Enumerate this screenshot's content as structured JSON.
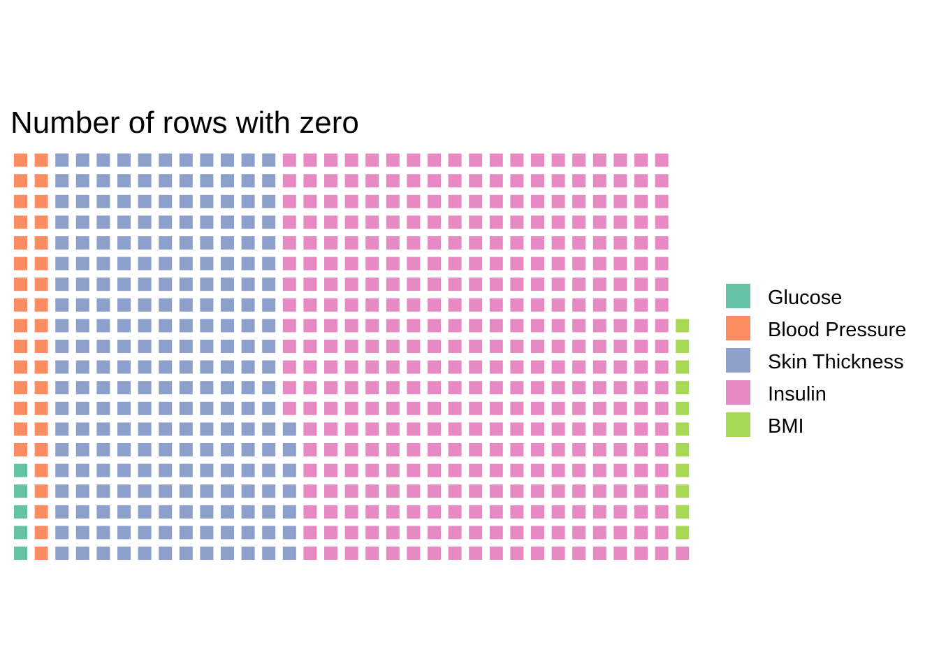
{
  "chart_data": {
    "type": "waffle",
    "title": "Number of rows with zero",
    "xlabel": "",
    "ylabel": "",
    "rows": 20,
    "unit_per_tile": 1,
    "fill_order": "column-wise, bottom to top, left to right",
    "categories": [
      "Glucose",
      "Blood Pressure",
      "Skin Thickness",
      "Insulin",
      "BMI"
    ],
    "values": [
      5,
      35,
      227,
      374,
      11
    ],
    "colors": [
      "#66c2a5",
      "#fc8d62",
      "#8da0cb",
      "#e78ac3",
      "#a6d854"
    ],
    "legend": {
      "position": "right",
      "entries": [
        {
          "label": "Glucose",
          "color": "#66c2a5"
        },
        {
          "label": "Blood Pressure",
          "color": "#fc8d62"
        },
        {
          "label": "Skin Thickness",
          "color": "#8da0cb"
        },
        {
          "label": "Insulin",
          "color": "#e78ac3"
        },
        {
          "label": "BMI",
          "color": "#a6d854"
        }
      ]
    },
    "grid": false
  }
}
